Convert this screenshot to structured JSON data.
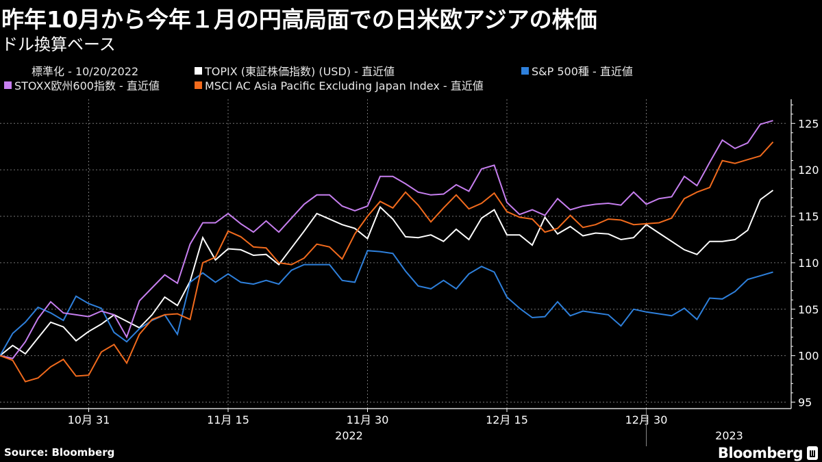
{
  "title": "昨年10月から今年１月の円高局面での日米欧アジアの株価",
  "subtitle": "ドル換算ベース",
  "legend": {
    "normalized": "標準化 - 10/20/2022"
  },
  "source": "Source: Bloomberg",
  "brand": "Bloomberg",
  "chart_data": {
    "type": "line",
    "title": "昨年10月から今年１月の円高局面での日米欧アジアの株価",
    "subtitle": "ドル換算ベース",
    "normalization": "標準化 - 10/20/2022",
    "x": [
      "2022-10-20",
      "2022-10-21",
      "2022-10-24",
      "2022-10-25",
      "2022-10-26",
      "2022-10-27",
      "2022-10-28",
      "2022-10-31",
      "2022-11-01",
      "2022-11-02",
      "2022-11-03",
      "2022-11-04",
      "2022-11-07",
      "2022-11-08",
      "2022-11-09",
      "2022-11-10",
      "2022-11-11",
      "2022-11-14",
      "2022-11-15",
      "2022-11-16",
      "2022-11-17",
      "2022-11-18",
      "2022-11-21",
      "2022-11-22",
      "2022-11-23",
      "2022-11-24",
      "2022-11-25",
      "2022-11-28",
      "2022-11-29",
      "2022-11-30",
      "2022-12-01",
      "2022-12-02",
      "2022-12-05",
      "2022-12-06",
      "2022-12-07",
      "2022-12-08",
      "2022-12-09",
      "2022-12-12",
      "2022-12-13",
      "2022-12-14",
      "2022-12-15",
      "2022-12-16",
      "2022-12-19",
      "2022-12-20",
      "2022-12-21",
      "2022-12-22",
      "2022-12-23",
      "2022-12-26",
      "2022-12-27",
      "2022-12-28",
      "2022-12-29",
      "2022-12-30",
      "2023-01-02",
      "2023-01-03",
      "2023-01-04",
      "2023-01-05",
      "2023-01-06",
      "2023-01-09",
      "2023-01-10",
      "2023-01-11",
      "2023-01-12",
      "2023-01-13"
    ],
    "series": [
      {
        "name": "TOPIX (東証株価指数) (USD) - 直近値",
        "color": "#ffffff",
        "values": [
          100,
          101.1,
          100.2,
          101.9,
          103.6,
          103.1,
          101.6,
          102.6,
          103.4,
          104.4,
          103.7,
          103.0,
          104.4,
          106.3,
          105.4,
          108.0,
          112.7,
          110.3,
          111.5,
          111.4,
          110.8,
          110.9,
          109.8,
          111.6,
          113.4,
          115.3,
          114.7,
          114.1,
          113.7,
          112.6,
          116.0,
          114.7,
          112.8,
          112.7,
          113.0,
          112.3,
          113.6,
          112.5,
          114.8,
          115.7,
          113.0,
          113.0,
          111.9,
          114.9,
          113.1,
          113.9,
          112.9,
          113.2,
          113.1,
          112.5,
          112.7,
          114.1,
          113.2,
          112.3,
          111.4,
          110.9,
          112.3,
          112.3,
          112.5,
          113.5,
          116.8,
          117.8
        ]
      },
      {
        "name": "S&P 500種 - 直近値",
        "color": "#2e80dc",
        "values": [
          100,
          102.4,
          103.6,
          105.2,
          104.6,
          103.8,
          106.4,
          105.6,
          105.1,
          102.5,
          101.5,
          102.9,
          103.8,
          104.4,
          102.3,
          107.9,
          108.9,
          107.9,
          108.8,
          107.9,
          107.7,
          108.1,
          107.7,
          109.2,
          109.8,
          109.8,
          109.8,
          108.1,
          107.9,
          111.3,
          111.2,
          111.0,
          109.1,
          107.5,
          107.2,
          108.1,
          107.2,
          108.8,
          109.6,
          109.0,
          106.3,
          105.1,
          104.1,
          104.2,
          105.8,
          104.3,
          104.8,
          104.6,
          104.4,
          103.2,
          105.0,
          104.7,
          104.5,
          104.3,
          105.1,
          103.9,
          106.2,
          106.1,
          106.9,
          108.2,
          108.6,
          109.0
        ]
      },
      {
        "name": "STOXX欧州600指数 - 直近値",
        "color": "#c77ff0",
        "values": [
          100,
          99.7,
          101.5,
          104.0,
          105.8,
          104.6,
          104.4,
          104.2,
          104.8,
          104.4,
          102.0,
          105.9,
          107.3,
          108.7,
          107.8,
          112.0,
          114.3,
          114.3,
          115.3,
          114.2,
          113.3,
          114.5,
          113.3,
          114.8,
          116.3,
          117.3,
          117.3,
          116.1,
          115.6,
          116.1,
          119.3,
          119.3,
          118.5,
          117.6,
          117.3,
          117.4,
          118.4,
          117.7,
          120.1,
          120.5,
          116.5,
          115.2,
          115.7,
          115.1,
          116.9,
          115.7,
          116.1,
          116.3,
          116.4,
          116.2,
          117.6,
          116.3,
          116.9,
          117.1,
          119.3,
          118.3,
          120.8,
          123.2,
          122.3,
          122.9,
          124.9,
          125.3
        ]
      },
      {
        "name": "MSCI AC Asia Pacific Excluding Japan Index - 直近値",
        "color": "#f26b1d",
        "values": [
          100,
          99.5,
          97.2,
          97.6,
          98.8,
          99.6,
          97.8,
          97.9,
          100.4,
          101.2,
          99.2,
          102.3,
          103.9,
          104.4,
          104.5,
          103.9,
          110.0,
          110.6,
          113.4,
          112.8,
          111.7,
          111.6,
          110.0,
          109.8,
          110.5,
          112.0,
          111.7,
          110.4,
          113.1,
          115.0,
          116.6,
          115.9,
          117.6,
          116.2,
          114.4,
          115.9,
          117.3,
          115.8,
          116.4,
          117.5,
          115.5,
          114.9,
          114.7,
          113.3,
          113.7,
          115.1,
          113.8,
          114.1,
          114.7,
          114.6,
          114.1,
          114.2,
          114.3,
          114.8,
          116.9,
          117.6,
          118.1,
          121.0,
          120.7,
          121.1,
          121.5,
          123.0
        ]
      }
    ],
    "y_ticks": [
      95,
      100,
      105,
      110,
      115,
      120,
      125
    ],
    "ylim": [
      94.3,
      127.6
    ],
    "x_ticks": [
      {
        "date": "2022-10-31",
        "label": "10月 31"
      },
      {
        "date": "2022-11-15",
        "label": "11月 15"
      },
      {
        "date": "2022-11-30",
        "label": "11月 30"
      },
      {
        "date": "2022-12-15",
        "label": "12月 15"
      },
      {
        "date": "2022-12-30",
        "label": "12月 30"
      }
    ],
    "years": [
      {
        "label": "2022",
        "center": "2022-11-28"
      },
      {
        "label": "2023",
        "center": "2023-01-09"
      }
    ],
    "year_separator": "2022-12-30",
    "grid": true,
    "y_axis_side": "right",
    "legend_position": "top-left"
  }
}
